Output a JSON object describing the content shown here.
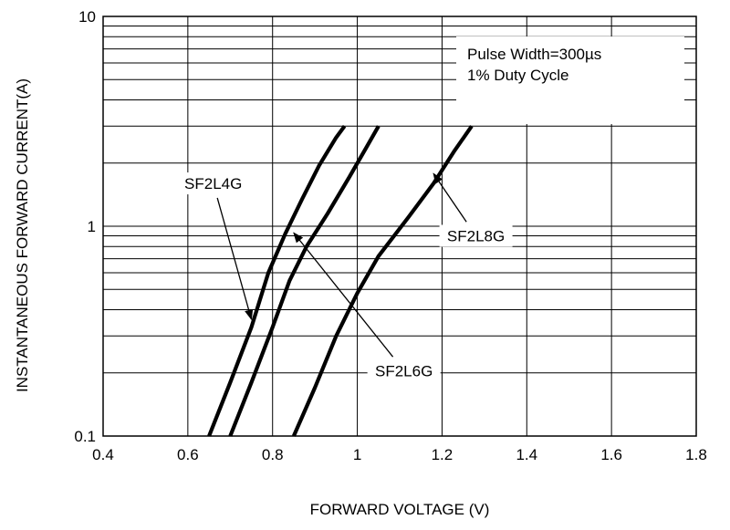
{
  "chart_data": {
    "type": "line",
    "xlabel": "FORWARD VOLTAGE (V)",
    "ylabel": "INSTANTANEOUS FORWARD CURRENT(A)",
    "xlim": [
      0.4,
      1.8
    ],
    "ylim": [
      0.1,
      10
    ],
    "yscale": "log",
    "grid": true,
    "x_ticks": [
      "0.4",
      "0.6",
      "0.8",
      "1",
      "1.2",
      "1.4",
      "1.6",
      "1.8"
    ],
    "y_ticks": [
      "0.1",
      "1",
      "10"
    ],
    "annotation": [
      "Pulse Width=300µs",
      "1% Duty Cycle"
    ],
    "series": [
      {
        "name": "SF2L4G",
        "x": [
          0.65,
          0.7,
          0.75,
          0.79,
          0.83,
          0.87,
          0.91,
          0.95,
          0.97
        ],
        "y": [
          0.1,
          0.18,
          0.33,
          0.6,
          0.92,
          1.35,
          1.95,
          2.65,
          3.0
        ]
      },
      {
        "name": "SF2L6G",
        "x": [
          0.7,
          0.75,
          0.8,
          0.84,
          0.88,
          0.93,
          0.98,
          1.02,
          1.05
        ],
        "y": [
          0.1,
          0.18,
          0.33,
          0.55,
          0.8,
          1.15,
          1.7,
          2.35,
          3.0
        ]
      },
      {
        "name": "SF2L8G",
        "x": [
          0.85,
          0.9,
          0.95,
          1.0,
          1.05,
          1.12,
          1.18,
          1.23,
          1.27
        ],
        "y": [
          0.1,
          0.17,
          0.3,
          0.48,
          0.72,
          1.1,
          1.6,
          2.3,
          3.0
        ]
      }
    ],
    "labels": [
      {
        "text": "SF2L4G",
        "x": 0.66,
        "y": 1.6,
        "arrow_to_x": 0.75,
        "arrow_to_y": 0.36
      },
      {
        "text": "SF2L6G",
        "x": 1.11,
        "y": 0.205,
        "arrow_to_x": 0.85,
        "arrow_to_y": 0.93
      },
      {
        "text": "SF2L8G",
        "x": 1.28,
        "y": 0.9,
        "arrow_to_x": 1.18,
        "arrow_to_y": 1.78
      }
    ]
  }
}
